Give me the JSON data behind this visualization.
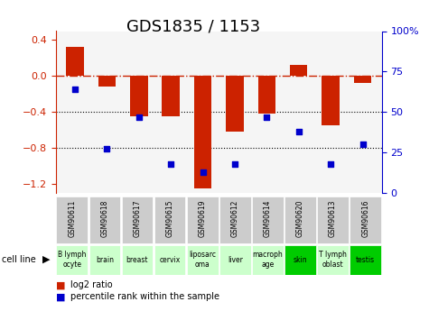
{
  "title": "GDS1835 / 1153",
  "gsm_labels": [
    "GSM90611",
    "GSM90618",
    "GSM90617",
    "GSM90615",
    "GSM90619",
    "GSM90612",
    "GSM90614",
    "GSM90620",
    "GSM90613",
    "GSM90616"
  ],
  "cell_labels": [
    [
      "B lymph",
      "ocyte"
    ],
    [
      "brain"
    ],
    [
      "breast"
    ],
    [
      "cervix"
    ],
    [
      "liposarc",
      "oma"
    ],
    [
      "liver"
    ],
    [
      "macroph",
      "age"
    ],
    [
      "skin"
    ],
    [
      "T lymph",
      "oblast"
    ],
    [
      "testis"
    ]
  ],
  "cell_colors": [
    "#ccffcc",
    "#ccffcc",
    "#ccffcc",
    "#ccffcc",
    "#ccffcc",
    "#ccffcc",
    "#ccffcc",
    "#00cc00",
    "#ccffcc",
    "#00cc00"
  ],
  "log2_ratio": [
    0.32,
    -0.12,
    -0.45,
    -0.45,
    -1.25,
    -0.62,
    -0.42,
    0.12,
    -0.55,
    -0.08
  ],
  "percentile_rank": [
    64,
    27,
    47,
    18,
    13,
    18,
    47,
    38,
    18,
    30
  ],
  "ylim_left": [
    -1.3,
    0.5
  ],
  "ylim_right": [
    0,
    100
  ],
  "bar_color": "#cc2200",
  "dot_color": "#0000cc",
  "hline_color": "#cc2200",
  "dotline_color": "black",
  "bg_color": "#ffffff",
  "plot_bg": "#f5f5f5",
  "gsm_box_color": "#cccccc",
  "title_fontsize": 13,
  "tick_fontsize": 8,
  "legend_fontsize": 8
}
